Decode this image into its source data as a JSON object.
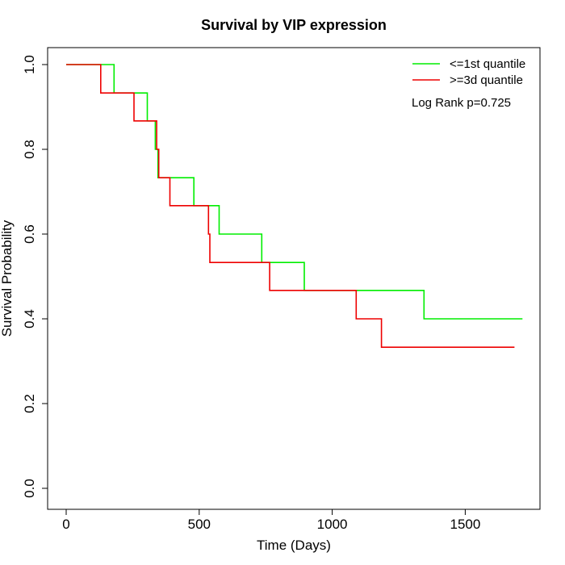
{
  "chart_data": {
    "type": "line",
    "title": "Survival by VIP expression",
    "xlabel": "Time (Days)",
    "ylabel": "Survival Probability",
    "xlim": [
      0,
      1750
    ],
    "ylim": [
      0,
      1.0
    ],
    "x_ticks": [
      0,
      500,
      1000,
      1500
    ],
    "y_ticks": [
      "0.0",
      "0.2",
      "0.4",
      "0.6",
      "0.8",
      "1.0"
    ],
    "grid": false,
    "legend_position": "top-right",
    "annotation": "Log Rank p=0.725",
    "series": [
      {
        "name": "<=1st quantile",
        "color": "#00ee00",
        "step": true,
        "points": [
          [
            0,
            1.0
          ],
          [
            180,
            1.0
          ],
          [
            180,
            0.933
          ],
          [
            305,
            0.933
          ],
          [
            305,
            0.867
          ],
          [
            335,
            0.867
          ],
          [
            335,
            0.8
          ],
          [
            345,
            0.8
          ],
          [
            345,
            0.733
          ],
          [
            480,
            0.733
          ],
          [
            480,
            0.667
          ],
          [
            575,
            0.667
          ],
          [
            575,
            0.6
          ],
          [
            735,
            0.6
          ],
          [
            735,
            0.533
          ],
          [
            895,
            0.533
          ],
          [
            895,
            0.467
          ],
          [
            1345,
            0.467
          ],
          [
            1345,
            0.4
          ],
          [
            1715,
            0.4
          ]
        ]
      },
      {
        "name": ">=3d quantile",
        "color": "#ee0000",
        "step": true,
        "points": [
          [
            0,
            1.0
          ],
          [
            130,
            1.0
          ],
          [
            130,
            0.933
          ],
          [
            255,
            0.933
          ],
          [
            255,
            0.867
          ],
          [
            340,
            0.867
          ],
          [
            340,
            0.8
          ],
          [
            348,
            0.8
          ],
          [
            348,
            0.733
          ],
          [
            390,
            0.733
          ],
          [
            390,
            0.667
          ],
          [
            535,
            0.667
          ],
          [
            535,
            0.6
          ],
          [
            540,
            0.6
          ],
          [
            540,
            0.533
          ],
          [
            765,
            0.533
          ],
          [
            765,
            0.467
          ],
          [
            1090,
            0.467
          ],
          [
            1090,
            0.4
          ],
          [
            1185,
            0.4
          ],
          [
            1185,
            0.333
          ],
          [
            1685,
            0.333
          ]
        ]
      }
    ]
  }
}
